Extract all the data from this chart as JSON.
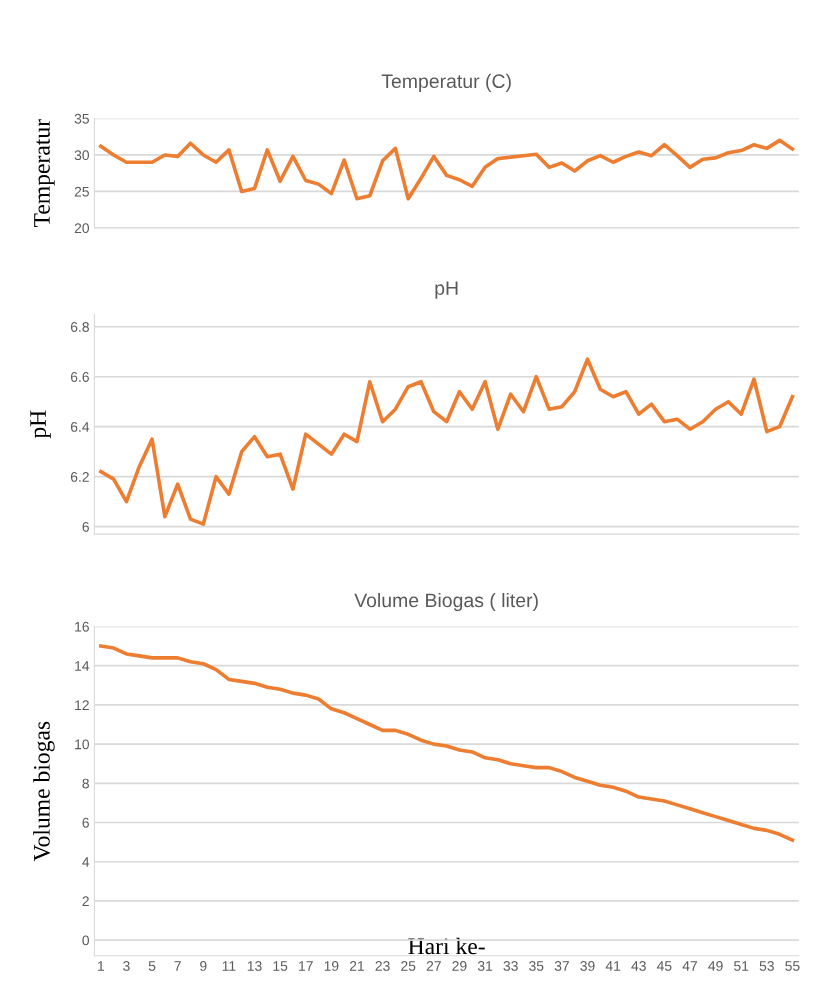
{
  "chart_data": [
    {
      "type": "line",
      "title": "Temperatur (C)",
      "ylabel": "Temperatur",
      "categories": [
        "1",
        null,
        "3",
        null,
        "5",
        null,
        "7",
        null,
        "9",
        null,
        "11",
        null,
        "13",
        null,
        "15",
        null,
        "17",
        null,
        "19",
        null,
        "21",
        null,
        "23",
        null,
        "25",
        null,
        "27",
        null,
        "29",
        null,
        "31",
        null,
        "33",
        null,
        "35",
        null,
        "37",
        null,
        "39",
        null,
        "41",
        null,
        "43",
        null,
        "45",
        null,
        "47",
        null,
        "49",
        null,
        "51",
        null,
        "53",
        null,
        "55"
      ],
      "series": [
        {
          "color": "#ed7d31",
          "values": [
            31.2,
            30,
            29,
            29,
            29,
            30,
            29.8,
            31.6,
            30,
            29,
            30.7,
            25,
            25.4,
            30.7,
            26.4,
            29.8,
            26.5,
            26,
            24.7,
            29.3,
            24,
            24.4,
            29.2,
            30.9,
            24,
            26.8,
            29.8,
            27.2,
            26.6,
            25.7,
            28.3,
            29.5,
            29.7,
            29.9,
            30.1,
            28.3,
            28.9,
            27.8,
            29.2,
            29.9,
            29,
            29.8,
            30.4,
            29.9,
            31.4,
            29.9,
            28.3,
            29.4,
            29.6,
            30.3,
            30.6,
            31.4,
            30.9,
            32,
            30.8
          ]
        }
      ],
      "ylim": [
        20,
        35
      ],
      "yticks": [
        20,
        25,
        30,
        35
      ],
      "grid": "y",
      "tick_labels": "y",
      "line_style": "solid"
    },
    {
      "type": "line",
      "title": "pH",
      "ylabel": "pH",
      "categories": [
        "1",
        null,
        "3",
        null,
        "5",
        null,
        "7",
        null,
        "9",
        null,
        "11",
        null,
        "13",
        null,
        "15",
        null,
        "17",
        null,
        "19",
        null,
        "21",
        null,
        "23",
        null,
        "25",
        null,
        "27",
        null,
        "29",
        null,
        "31",
        null,
        "33",
        null,
        "35",
        null,
        "37",
        null,
        "39",
        null,
        "41",
        null,
        "43",
        null,
        "45",
        null,
        "47",
        null,
        "49",
        null,
        "51",
        null,
        "53",
        null,
        "55"
      ],
      "series": [
        {
          "color": "#ed7d31",
          "values": [
            6.22,
            6.19,
            6.1,
            6.24,
            6.35,
            6.04,
            6.17,
            6.03,
            6.01,
            6.2,
            6.13,
            6.3,
            6.36,
            6.28,
            6.29,
            6.15,
            6.37,
            6.33,
            6.29,
            6.37,
            6.34,
            6.58,
            6.42,
            6.47,
            6.56,
            6.58,
            6.46,
            6.42,
            6.54,
            6.47,
            6.58,
            6.39,
            6.53,
            6.46,
            6.6,
            6.47,
            6.48,
            6.54,
            6.67,
            6.55,
            6.52,
            6.54,
            6.45,
            6.49,
            6.42,
            6.43,
            6.39,
            6.42,
            6.47,
            6.5,
            6.45,
            6.59,
            6.38,
            6.4,
            6.52
          ]
        }
      ],
      "ylim": [
        5.97,
        6.85
      ],
      "yticks": [
        6,
        6.2,
        6.4,
        6.6,
        6.8
      ],
      "grid": "y",
      "tick_labels": "y",
      "line_style": "solid"
    },
    {
      "type": "line",
      "title": "Volume Biogas ( liter)",
      "ylabel": "Volume biogas",
      "xlabel": "Hari ke-",
      "categories": [
        "1",
        null,
        "3",
        null,
        "5",
        null,
        "7",
        null,
        "9",
        null,
        "11",
        null,
        "13",
        null,
        "15",
        null,
        "17",
        null,
        "19",
        null,
        "21",
        null,
        "23",
        null,
        "25",
        null,
        "27",
        null,
        "29",
        null,
        "31",
        null,
        "33",
        null,
        "35",
        null,
        "37",
        null,
        "39",
        null,
        "41",
        null,
        "43",
        null,
        "45",
        null,
        "47",
        null,
        "49",
        null,
        "51",
        null,
        "53",
        null,
        "55"
      ],
      "series": [
        {
          "color": "#ed7d31",
          "values": [
            15,
            14.9,
            14.6,
            14.5,
            14.4,
            14.4,
            14.4,
            14.2,
            14.1,
            13.8,
            13.3,
            13.2,
            13.1,
            12.9,
            12.8,
            12.6,
            12.5,
            12.3,
            11.8,
            11.6,
            11.3,
            11,
            10.7,
            10.7,
            10.5,
            10.2,
            10,
            9.9,
            9.7,
            9.6,
            9.3,
            9.2,
            9,
            8.9,
            8.8,
            8.8,
            8.6,
            8.3,
            8.1,
            7.9,
            7.8,
            7.6,
            7.3,
            7.2,
            7.1,
            6.9,
            6.7,
            6.5,
            6.3,
            6.1,
            5.9,
            5.7,
            5.6,
            5.4,
            5.1
          ]
        }
      ],
      "ylim": [
        -0.8,
        16
      ],
      "yticks": [
        0,
        2,
        4,
        6,
        8,
        10,
        12,
        14,
        16
      ],
      "grid": "y",
      "line_style": "solid"
    }
  ]
}
